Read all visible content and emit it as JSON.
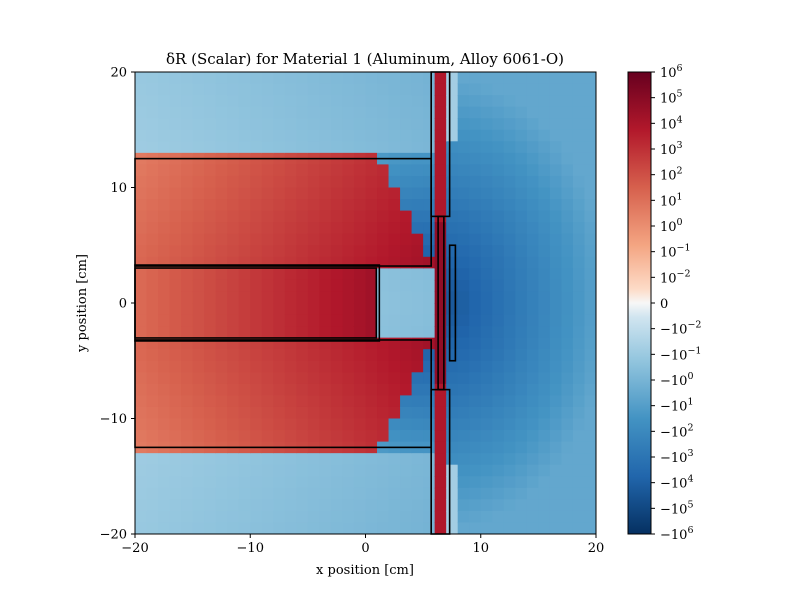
{
  "chart_data": {
    "type": "heatmap",
    "title": "δR (Scalar) for Material 1 (Aluminum, Alloy 6061-O)",
    "xlabel": "x position [cm]",
    "ylabel": "y position [cm]",
    "xlim": [
      -20,
      20
    ],
    "ylim": [
      -20,
      20
    ],
    "x_ticks": [
      -20,
      -10,
      0,
      10,
      20
    ],
    "x_tick_labels": [
      "−20",
      "−10",
      "0",
      "10",
      "20"
    ],
    "y_ticks": [
      -20,
      -10,
      0,
      10,
      20
    ],
    "y_tick_labels": [
      "−20",
      "−10",
      "0",
      "10",
      "20"
    ],
    "colormap": "RdBu_r",
    "color_scale": "symlog",
    "colorbar": {
      "range": [
        -1000000,
        1000000
      ],
      "ticks": [
        {
          "base": "10",
          "exp": "6"
        },
        {
          "base": "10",
          "exp": "5"
        },
        {
          "base": "10",
          "exp": "4"
        },
        {
          "base": "10",
          "exp": "3"
        },
        {
          "base": "10",
          "exp": "2"
        },
        {
          "base": "10",
          "exp": "1"
        },
        {
          "base": "10",
          "exp": "0"
        },
        {
          "base": "10",
          "exp": "−1"
        },
        {
          "base": "10",
          "exp": "−2"
        },
        {
          "base": "0",
          "exp": ""
        },
        {
          "base": "−10",
          "exp": "−2"
        },
        {
          "base": "−10",
          "exp": "−1"
        },
        {
          "base": "−10",
          "exp": "0"
        },
        {
          "base": "−10",
          "exp": "1"
        },
        {
          "base": "−10",
          "exp": "2"
        },
        {
          "base": "−10",
          "exp": "3"
        },
        {
          "base": "−10",
          "exp": "4"
        },
        {
          "base": "−10",
          "exp": "5"
        },
        {
          "base": "−10",
          "exp": "6"
        }
      ]
    },
    "regions": [
      {
        "name": "upper-slab",
        "x": [
          -20,
          5.7
        ],
        "y": [
          3.2,
          12.5
        ]
      },
      {
        "name": "lower-slab",
        "x": [
          -20,
          5.7
        ],
        "y": [
          -12.5,
          -3.2
        ]
      },
      {
        "name": "center-rod",
        "x": [
          -20,
          1.2
        ],
        "y": [
          -3.2,
          3.2
        ]
      },
      {
        "name": "upper-plate",
        "x": [
          5.7,
          7.3
        ],
        "y": [
          7.5,
          20
        ]
      },
      {
        "name": "lower-plate",
        "x": [
          5.7,
          7.3
        ],
        "y": [
          -20,
          -7.5
        ]
      },
      {
        "name": "center-strip",
        "x": [
          6.3,
          6.8
        ],
        "y": [
          -7.5,
          7.5
        ]
      },
      {
        "name": "detector-strip",
        "x": [
          7.3,
          7.8
        ],
        "y": [
          -5,
          5
        ]
      }
    ],
    "grid": false
  },
  "colors": {
    "strong_positive": "#67001f",
    "positive": "#d6604d",
    "neutral": "#f7f7f7",
    "negative": "#4393c3",
    "strong_negative": "#053061"
  }
}
